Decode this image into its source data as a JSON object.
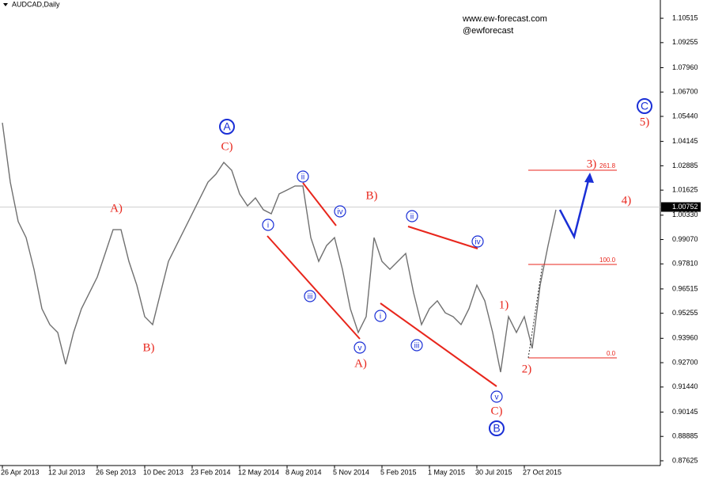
{
  "chart_data": {
    "type": "line",
    "title": "AUDCAD,Daily",
    "watermark": [
      "www.ew-forecast.com",
      "@ewforecast"
    ],
    "categories": [
      "26 Apr 2013",
      null,
      null,
      null,
      null,
      null,
      "12 Jul 2013",
      null,
      null,
      null,
      null,
      null,
      "26 Sep 2013",
      null,
      null,
      null,
      null,
      null,
      "10 Dec 2013",
      null,
      null,
      null,
      null,
      null,
      "23 Feb 2014",
      null,
      null,
      null,
      null,
      null,
      "12 May 2014",
      null,
      null,
      null,
      null,
      null,
      "8 Aug 2014",
      null,
      null,
      null,
      null,
      null,
      "5 Nov 2014",
      null,
      null,
      null,
      null,
      null,
      "5 Feb 2015",
      null,
      null,
      null,
      null,
      null,
      "1 May 2015",
      null,
      null,
      null,
      null,
      null,
      "30 Jul 2015",
      null,
      null,
      null,
      null,
      null,
      "27 Oct 2015",
      null,
      null,
      null,
      null
    ],
    "values": [
      1.0511,
      1.0204,
      1.0,
      0.9917,
      0.9753,
      0.9549,
      0.9467,
      0.9426,
      0.9262,
      0.9426,
      0.9549,
      0.9631,
      0.9713,
      0.9835,
      0.9958,
      0.9958,
      0.9794,
      0.9671,
      0.9508,
      0.9467,
      0.9631,
      0.9794,
      0.9876,
      0.9958,
      1.004,
      1.0122,
      1.0204,
      1.0245,
      1.0306,
      1.0265,
      1.0143,
      1.0081,
      1.0122,
      1.0061,
      1.004,
      1.0143,
      1.0163,
      1.0184,
      1.0184,
      0.9917,
      0.9794,
      0.9876,
      0.9917,
      0.9753,
      0.9549,
      0.9426,
      0.9508,
      0.9917,
      0.9794,
      0.9753,
      0.9794,
      0.9835,
      0.9631,
      0.9467,
      0.9549,
      0.959,
      0.9528,
      0.9508,
      0.9467,
      0.9549,
      0.9671,
      0.959,
      0.9426,
      0.9221,
      0.9508,
      0.9426,
      0.9508,
      0.9344,
      0.9671,
      0.9876,
      1.0061
    ],
    "color": "#707070",
    "ylim": [
      0.8701,
      1.1146
    ],
    "yticks": [
      1.10515,
      1.09255,
      {
        "value": 1.0796,
        "label": "1.07960"
      },
      {
        "value": 1.067,
        "label": "1.06700"
      },
      {
        "value": 1.0544,
        "label": "1.05440"
      },
      1.04145,
      1.02885,
      1.01625,
      {
        "value": 1.0033,
        "label": "1.00330"
      },
      {
        "value": 0.9907,
        "label": "0.99070"
      },
      {
        "value": 0.9781,
        "label": "0.97810"
      },
      0.96515,
      0.95255,
      {
        "value": 0.9396,
        "label": "0.93960"
      },
      {
        "value": 0.927,
        "label": "0.92700"
      },
      {
        "value": 0.9144,
        "label": "0.91440"
      },
      0.90145,
      0.88885,
      0.87625
    ],
    "current_price": 1.00752,
    "red_labels": [
      "A)",
      "B)",
      "C)",
      "A)",
      "B)",
      "1)",
      "2)",
      "C)",
      "3)",
      "4)",
      "5)"
    ],
    "blue_labels": [
      "A",
      "ii",
      "iv",
      "i",
      "iii",
      "v",
      "ii",
      "iv",
      "i",
      "iii",
      "v",
      "B",
      "C"
    ],
    "fib_labels": [
      "261.8",
      "100.0",
      "0.0"
    ]
  }
}
